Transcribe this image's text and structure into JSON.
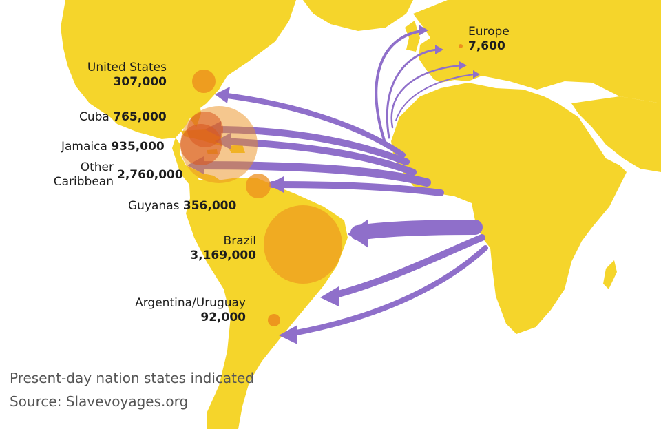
{
  "colors": {
    "land": "#f5d52b",
    "ocean": "#ffffff",
    "arrow": "#8f6fca",
    "bubble": "#ec8f1d"
  },
  "destinations": [
    {
      "id": "united-states",
      "name": "United States",
      "value": "307,000"
    },
    {
      "id": "cuba",
      "name": "Cuba",
      "value": "765,000"
    },
    {
      "id": "jamaica",
      "name": "Jamaica",
      "value": "935,000"
    },
    {
      "id": "other-caribbean",
      "name": "Other\nCaribbean",
      "value": "2,760,000"
    },
    {
      "id": "guyanas",
      "name": "Guyanas",
      "value": "356,000"
    },
    {
      "id": "brazil",
      "name": "Brazil",
      "value": "3,169,000"
    },
    {
      "id": "argentina-uruguay",
      "name": "Argentina/Uruguay",
      "value": "92,000"
    },
    {
      "id": "europe",
      "name": "Europe",
      "value": "7,600"
    }
  ],
  "footer": {
    "note": "Present-day nation states indicated",
    "source": "Source: Slavevoyages.org"
  }
}
